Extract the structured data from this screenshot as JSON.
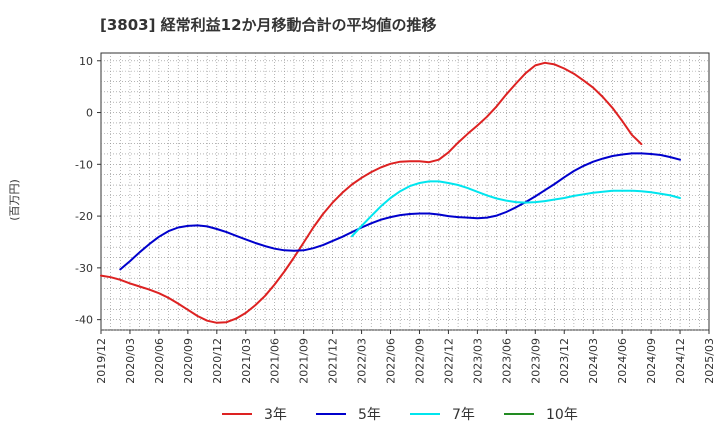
{
  "chart_data": {
    "type": "line",
    "title": "[3803]  経常利益12か月移動合計の平均値の推移",
    "ylabel": "(百万円)",
    "xlabel": "",
    "ylim": [
      -42,
      11.5
    ],
    "yticks": [
      10,
      0,
      -10,
      -20,
      -30,
      -40
    ],
    "grid": true,
    "legend_position": "bottom",
    "x_start": "2019/12",
    "x_end": "2025/03",
    "x_ticks": [
      "2019/12",
      "2020/03",
      "2020/06",
      "2020/09",
      "2020/12",
      "2021/03",
      "2021/06",
      "2021/09",
      "2021/12",
      "2022/03",
      "2022/06",
      "2022/09",
      "2022/12",
      "2023/03",
      "2023/06",
      "2023/09",
      "2023/12",
      "2024/03",
      "2024/06",
      "2024/09",
      "2024/12",
      "2025/03"
    ],
    "series": [
      {
        "name": "3年",
        "color": "#dd2222",
        "start": "2019/12",
        "values": [
          -31.5,
          -31.8,
          -32.3,
          -33.0,
          -33.6,
          -34.2,
          -34.9,
          -35.8,
          -36.9,
          -38.1,
          -39.3,
          -40.2,
          -40.6,
          -40.5,
          -39.8,
          -38.7,
          -37.2,
          -35.4,
          -33.2,
          -30.7,
          -28.0,
          -25.1,
          -22.2,
          -19.6,
          -17.4,
          -15.5,
          -13.9,
          -12.6,
          -11.5,
          -10.6,
          -9.9,
          -9.5,
          -9.4,
          -9.4,
          -9.6,
          -9.1,
          -7.7,
          -5.8,
          -4.1,
          -2.5,
          -0.8,
          1.2,
          3.5,
          5.6,
          7.6,
          9.1,
          9.6,
          9.3,
          8.5,
          7.5,
          6.2,
          4.8,
          3.0,
          0.9,
          -1.6,
          -4.3,
          -6.1
        ]
      },
      {
        "name": "5年",
        "color": "#0000cc",
        "start": "2020/02",
        "values": [
          -30.3,
          -28.7,
          -27.0,
          -25.4,
          -24.0,
          -22.9,
          -22.2,
          -21.9,
          -21.8,
          -22.0,
          -22.5,
          -23.1,
          -23.8,
          -24.5,
          -25.2,
          -25.8,
          -26.3,
          -26.6,
          -26.7,
          -26.6,
          -26.2,
          -25.6,
          -24.8,
          -24.0,
          -23.1,
          -22.2,
          -21.4,
          -20.7,
          -20.2,
          -19.8,
          -19.6,
          -19.5,
          -19.5,
          -19.7,
          -20.0,
          -20.2,
          -20.3,
          -20.4,
          -20.3,
          -19.9,
          -19.2,
          -18.3,
          -17.3,
          -16.2,
          -15.0,
          -13.8,
          -12.5,
          -11.3,
          -10.3,
          -9.5,
          -8.9,
          -8.4,
          -8.1,
          -7.9,
          -7.9,
          -8.0,
          -8.2,
          -8.6,
          -9.1
        ]
      },
      {
        "name": "7年",
        "color": "#00e5ee",
        "start": "2022/02",
        "values": [
          -23.9,
          -21.9,
          -20.0,
          -18.1,
          -16.5,
          -15.2,
          -14.2,
          -13.6,
          -13.3,
          -13.3,
          -13.6,
          -14.0,
          -14.6,
          -15.3,
          -16.0,
          -16.6,
          -17.0,
          -17.3,
          -17.4,
          -17.3,
          -17.1,
          -16.8,
          -16.5,
          -16.1,
          -15.8,
          -15.5,
          -15.3,
          -15.1,
          -15.1,
          -15.1,
          -15.2,
          -15.4,
          -15.7,
          -16.0,
          -16.5
        ]
      },
      {
        "name": "10年",
        "color": "#228b22",
        "start": "2020/01",
        "values": []
      }
    ]
  }
}
